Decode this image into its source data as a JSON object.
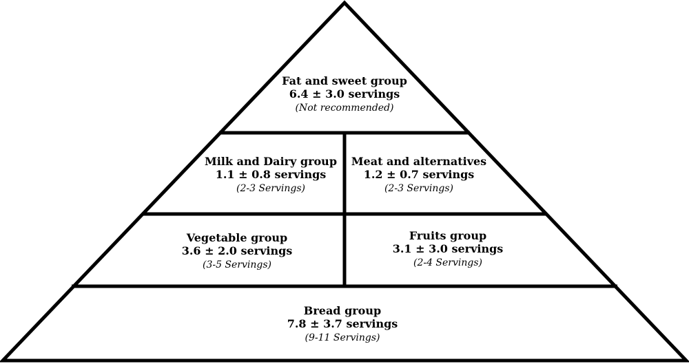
{
  "groups": {
    "fat_sweet": {
      "name": "Fat and sweet group",
      "servings": "6.4 ± 3.0 servings",
      "recommendation": "(Not recommended)"
    },
    "milk_dairy": {
      "name": "Milk and Dairy group",
      "servings": "1.1 ± 0.8 servings",
      "recommendation": "(2-3 Servings)"
    },
    "meat": {
      "name": "Meat and alternatives",
      "servings": "1.2 ± 0.7 servings",
      "recommendation": "(2-3 Servings)"
    },
    "vegetable": {
      "name": "Vegetable group",
      "servings": "3.6 ± 2.0 servings",
      "recommendation": "(3-5 Servings)"
    },
    "fruits": {
      "name": "Fruits group",
      "servings": "3.1 ± 3.0 servings",
      "recommendation": "(2-4 Servings)"
    },
    "bread": {
      "name": "Bread group",
      "servings": "7.8 ± 3.7 servings",
      "recommendation": "(9-11 Servings)"
    }
  }
}
